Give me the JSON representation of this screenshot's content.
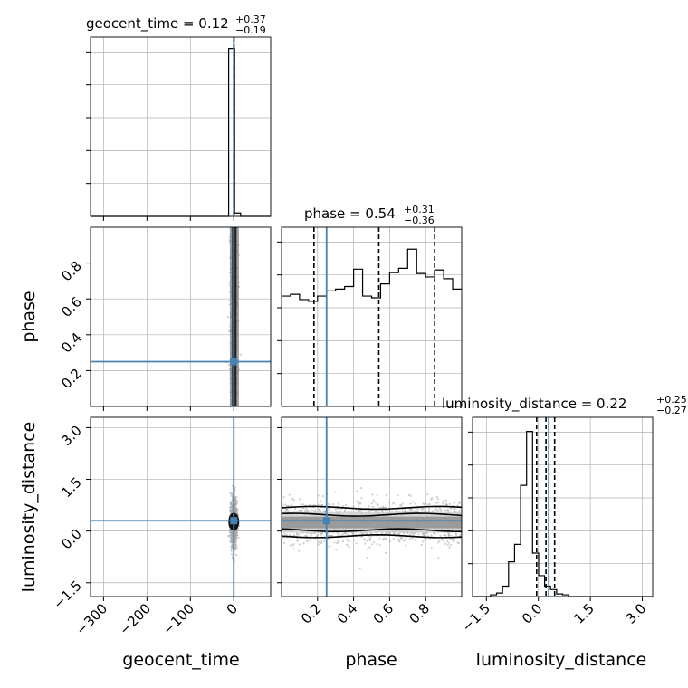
{
  "chart_data": {
    "type": "corner",
    "parameters": [
      "geocent_time",
      "phase",
      "luminosity_distance"
    ],
    "truths": {
      "geocent_time": 0.0,
      "phase": 0.25,
      "luminosity_distance": 0.3
    },
    "colors": {
      "truth": "#4682b4",
      "hist": "#000000",
      "grid": "#b0b0b0",
      "scatter": "#a8a8a8"
    },
    "titles": {
      "geocent_time": {
        "text": "geocent_time = 0.12",
        "plus": "+0.37",
        "minus": "−0.19"
      },
      "phase": {
        "text": "phase = 0.54",
        "plus": "+0.31",
        "minus": "−0.36"
      },
      "luminosity_distance": {
        "text": "luminosity_distance = 0.22",
        "plus": "+0.25",
        "minus": "−0.27"
      }
    },
    "axes": {
      "geocent_time": {
        "range": [
          -330,
          85
        ],
        "ticks": [
          -300,
          -200,
          -100,
          0
        ],
        "tick_labels": [
          "−300",
          "−200",
          "−100",
          "0"
        ]
      },
      "phase": {
        "range": [
          0.0,
          1.0
        ],
        "ticks": [
          0.2,
          0.4,
          0.6,
          0.8
        ],
        "tick_labels": [
          "0.2",
          "0.4",
          "0.6",
          "0.8"
        ]
      },
      "luminosity_distance": {
        "range": [
          -1.9,
          3.3
        ],
        "ticks": [
          -1.5,
          0.0,
          1.5,
          3.0
        ],
        "tick_labels": [
          "−1.5",
          "0.0",
          "1.5",
          "3.0"
        ]
      }
    },
    "quantile_lines": {
      "geocent_time": [
        -0.07,
        0.12,
        0.49
      ],
      "phase": [
        0.18,
        0.54,
        0.85
      ],
      "luminosity_distance": [
        -0.05,
        0.22,
        0.47
      ]
    },
    "histograms": {
      "geocent_time": {
        "edges": [
          -330,
          -316.2,
          -302.3,
          -288.5,
          -274.7,
          -260.8,
          -247,
          -233.2,
          -219.3,
          -205.5,
          -191.7,
          -177.8,
          -164,
          -150.2,
          -136.3,
          -122.5,
          -108.7,
          -94.8,
          -81,
          -67.2,
          -53.3,
          -39.5,
          -25.7,
          -11.8,
          2,
          15.8,
          29.7,
          43.5,
          57.3,
          71.2,
          85
        ],
        "counts": [
          0,
          0,
          0,
          0,
          0,
          0,
          0,
          0,
          0,
          0,
          0,
          0,
          0,
          0,
          0,
          0,
          0,
          0,
          0,
          0,
          0,
          0,
          0,
          0.985,
          0.02,
          0,
          0,
          0,
          0,
          0
        ],
        "ymax": 1.02
      },
      "phase": {
        "edges": [
          0,
          0.05,
          0.1,
          0.15,
          0.2,
          0.25,
          0.3,
          0.35,
          0.4,
          0.45,
          0.5,
          0.55,
          0.6,
          0.65,
          0.7,
          0.75,
          0.8,
          0.85,
          0.9,
          0.95,
          1.0
        ],
        "counts": [
          0.635,
          0.645,
          0.615,
          0.605,
          0.635,
          0.665,
          0.675,
          0.69,
          0.79,
          0.635,
          0.625,
          0.705,
          0.77,
          0.795,
          0.905,
          0.765,
          0.745,
          0.785,
          0.735,
          0.675
        ],
        "ymax": 1.0
      },
      "luminosity_distance": {
        "edges": [
          -1.9,
          -1.727,
          -1.553,
          -1.38,
          -1.207,
          -1.033,
          -0.86,
          -0.687,
          -0.513,
          -0.34,
          -0.167,
          0.007,
          0.18,
          0.353,
          0.527,
          0.7,
          0.873,
          1.047,
          1.22,
          1.393,
          1.567,
          1.74,
          1.913,
          2.087,
          2.26,
          2.433,
          2.607,
          2.78,
          2.953,
          3.127,
          3.3
        ],
        "counts": [
          0,
          0,
          0,
          0.01,
          0.02,
          0.06,
          0.2,
          0.3,
          0.64,
          0.95,
          0.25,
          0.12,
          0.06,
          0.04,
          0.015,
          0.01,
          0,
          0,
          0,
          0,
          0,
          0,
          0,
          0,
          0,
          0,
          0,
          0,
          0,
          0
        ],
        "ymax": 1.0
      }
    },
    "grid": true
  }
}
